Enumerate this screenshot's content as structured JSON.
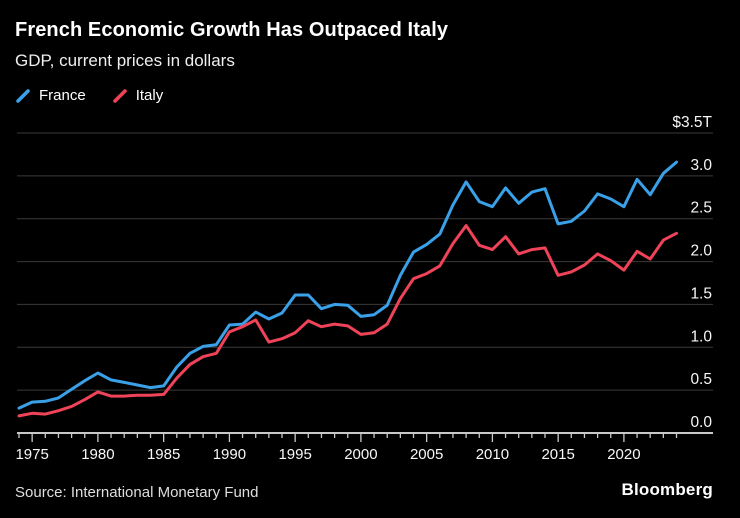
{
  "header": {
    "title": "French Economic Growth Has Outpaced Italy",
    "subtitle": "GDP, current prices in dollars"
  },
  "legend": [
    {
      "label": "France",
      "color": "#3AA1E8",
      "icon": "blue-slash-icon"
    },
    {
      "label": "Italy",
      "color": "#EE4358",
      "icon": "red-slash-icon"
    }
  ],
  "footer": {
    "source": "Source: International Monetary Fund",
    "brand": "Bloomberg"
  },
  "colors": {
    "background": "#000000",
    "grid": "#3A3A3A",
    "axis": "#C8C8C8",
    "tick_label": "#F7F7F7",
    "france": "#3AA1E8",
    "italy": "#EE4358"
  },
  "chart_data": {
    "type": "line",
    "title": "French Economic Growth Has Outpaced Italy",
    "subtitle": "GDP, current prices in dollars",
    "xlabel": "",
    "ylabel": "",
    "ylim": [
      0,
      3.5
    ],
    "xlim": [
      1973.9,
      2026.8
    ],
    "grid": "horizontal",
    "legend_position": "top-left",
    "x": [
      1974,
      1975,
      1976,
      1977,
      1978,
      1979,
      1980,
      1981,
      1982,
      1983,
      1984,
      1985,
      1986,
      1987,
      1988,
      1989,
      1990,
      1991,
      1992,
      1993,
      1994,
      1995,
      1996,
      1997,
      1998,
      1999,
      2000,
      2001,
      2002,
      2003,
      2004,
      2005,
      2006,
      2007,
      2008,
      2009,
      2010,
      2011,
      2012,
      2013,
      2014,
      2015,
      2016,
      2017,
      2018,
      2019,
      2020,
      2021,
      2022,
      2023,
      2024
    ],
    "series": [
      {
        "name": "France",
        "color": "#3AA1E8",
        "values": [
          0.29,
          0.36,
          0.37,
          0.41,
          0.51,
          0.61,
          0.7,
          0.62,
          0.59,
          0.56,
          0.53,
          0.55,
          0.77,
          0.93,
          1.01,
          1.03,
          1.26,
          1.27,
          1.41,
          1.33,
          1.4,
          1.61,
          1.61,
          1.45,
          1.5,
          1.49,
          1.36,
          1.38,
          1.49,
          1.84,
          2.11,
          2.2,
          2.32,
          2.66,
          2.93,
          2.7,
          2.64,
          2.86,
          2.68,
          2.81,
          2.85,
          2.44,
          2.47,
          2.59,
          2.79,
          2.73,
          2.64,
          2.96,
          2.78,
          3.03,
          3.16
        ]
      },
      {
        "name": "Italy",
        "color": "#EE4358",
        "values": [
          0.2,
          0.23,
          0.22,
          0.26,
          0.31,
          0.39,
          0.48,
          0.43,
          0.43,
          0.44,
          0.44,
          0.45,
          0.64,
          0.8,
          0.89,
          0.93,
          1.18,
          1.24,
          1.32,
          1.06,
          1.1,
          1.17,
          1.31,
          1.24,
          1.27,
          1.25,
          1.15,
          1.17,
          1.27,
          1.57,
          1.8,
          1.86,
          1.95,
          2.21,
          2.42,
          2.19,
          2.14,
          2.29,
          2.09,
          2.14,
          2.16,
          1.84,
          1.88,
          1.96,
          2.09,
          2.01,
          1.9,
          2.12,
          2.03,
          2.25,
          2.33
        ]
      }
    ],
    "yticks": [
      {
        "value": 3.5,
        "label": "$3.5T"
      },
      {
        "value": 3.0,
        "label": "3.0"
      },
      {
        "value": 2.5,
        "label": "2.5"
      },
      {
        "value": 2.0,
        "label": "2.0"
      },
      {
        "value": 1.5,
        "label": "1.5"
      },
      {
        "value": 1.0,
        "label": "1.0"
      },
      {
        "value": 0.5,
        "label": "0.5"
      },
      {
        "value": 0.0,
        "label": "0.0"
      }
    ],
    "xticks": [
      1975,
      1980,
      1985,
      1990,
      1995,
      2000,
      2005,
      2010,
      2015,
      2020
    ]
  }
}
